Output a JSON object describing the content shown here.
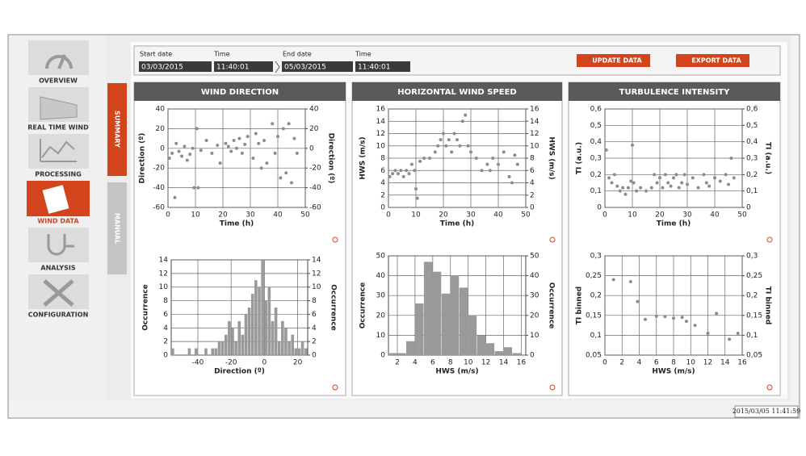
{
  "sidebar": {
    "items": [
      "OVERVIEW",
      "REAL TIME WIND",
      "PROCESSING",
      "WIND DATA",
      "ANALYSIS",
      "CONFIGURATION"
    ]
  },
  "tabs": [
    "SUMMARY",
    "MANUAL"
  ],
  "controls": {
    "start_date_label": "Start date",
    "start_date": "03/03/2015",
    "time_label": "Time",
    "start_time": "11:40:01",
    "end_date_label": "End date",
    "end_date": "05/03/2015",
    "end_time_label": "Time",
    "end_time": "11:40:01",
    "update_button": "UPDATE DATA",
    "export_button": "EXPORT DATA"
  },
  "panels": [
    "WIND DIRECTION",
    "HORIZONTAL WIND SPEED",
    "TURBULENCE INTENSITY"
  ],
  "status": "2015/03/05 11:41:59",
  "chart_data": [
    {
      "type": "scatter",
      "xlabel": "Time (h)",
      "ylabel": "Direction (º)",
      "y2label": "Direction (º)",
      "color": "#8c8c8c",
      "grid": true,
      "xlim": [
        0,
        50
      ],
      "xticks": [
        0,
        10,
        20,
        30,
        40,
        50
      ],
      "ylim": [
        -60,
        40
      ],
      "yticks": [
        -60,
        -40,
        -20,
        0,
        20,
        40
      ],
      "y2lim": [
        -60,
        40
      ],
      "y2ticks": [
        -60,
        -40,
        -20,
        0,
        20,
        40
      ],
      "x": [
        0.5,
        1.5,
        2.5,
        3,
        4,
        5,
        6,
        7,
        8,
        9,
        9.5,
        10.5,
        11,
        12,
        14,
        16,
        18,
        19,
        21,
        22,
        23,
        24,
        25,
        26,
        27,
        28,
        29,
        31,
        32,
        33,
        34,
        35,
        36,
        38,
        39,
        40,
        41,
        42,
        43,
        44,
        45,
        46,
        47
      ],
      "values": [
        -10,
        -5,
        -50,
        5,
        -3,
        -8,
        2,
        -12,
        -6,
        0,
        -40,
        20,
        -40,
        -2,
        8,
        -5,
        3,
        -15,
        5,
        2,
        -3,
        8,
        0,
        10,
        -5,
        4,
        12,
        -10,
        15,
        5,
        -20,
        8,
        -15,
        25,
        -5,
        12,
        -30,
        20,
        -25,
        25,
        -35,
        10,
        -5
      ]
    },
    {
      "type": "histogram",
      "xlabel": "Direction (º)",
      "ylabel": "Occurrence",
      "y2label": "Occurrence",
      "color": "#9a9a9a",
      "grid": true,
      "xlim": [
        -56,
        26
      ],
      "xticks": [
        -40,
        -20,
        0,
        20
      ],
      "ylim": [
        0,
        14
      ],
      "yticks": [
        0,
        2,
        4,
        6,
        8,
        10,
        12,
        14
      ],
      "y2lim": [
        0,
        14
      ],
      "y2ticks": [
        0,
        2,
        4,
        6,
        8,
        10,
        12,
        14
      ],
      "bins": [
        -56,
        -54,
        -52,
        -50,
        -48,
        -46,
        -44,
        -42,
        -40,
        -38,
        -36,
        -34,
        -32,
        -30,
        -28,
        -26,
        -24,
        -22,
        -20,
        -18,
        -16,
        -14,
        -12,
        -10,
        -8,
        -6,
        -4,
        -2,
        0,
        2,
        4,
        6,
        8,
        10,
        12,
        14,
        16,
        18,
        20,
        22,
        24,
        26
      ],
      "values": [
        1,
        0,
        0,
        0,
        0,
        1,
        0,
        1,
        0,
        0,
        1,
        0,
        1,
        1,
        2,
        2,
        3,
        5,
        4,
        2,
        5,
        3,
        6,
        7,
        9,
        11,
        10,
        14,
        8,
        10,
        5,
        7,
        2,
        5,
        4,
        2,
        3,
        1,
        1,
        2,
        1
      ]
    },
    {
      "type": "scatter",
      "xlabel": "Time (h)",
      "ylabel": "HWS (m/s)",
      "y2label": "HWS (m/s)",
      "color": "#8c8c8c",
      "grid": true,
      "xlim": [
        0,
        50
      ],
      "xticks": [
        0,
        10,
        20,
        30,
        40,
        50
      ],
      "ylim": [
        0,
        16
      ],
      "yticks": [
        0,
        2,
        4,
        6,
        8,
        10,
        12,
        14,
        16
      ],
      "y2lim": [
        0,
        16
      ],
      "y2ticks": [
        0,
        2,
        4,
        6,
        8,
        10,
        12,
        14,
        16
      ],
      "x": [
        0.5,
        1.5,
        2.5,
        3.5,
        4.5,
        5.5,
        6.5,
        7.5,
        8.5,
        9.5,
        10,
        10.5,
        11.5,
        13,
        15,
        17,
        18,
        19,
        20,
        21,
        22,
        23,
        24,
        25,
        26,
        27,
        28,
        29,
        30,
        32,
        34,
        36,
        37,
        38,
        40,
        42,
        44,
        45,
        46,
        47
      ],
      "values": [
        5,
        5.5,
        6,
        5.5,
        6,
        5,
        6,
        5.5,
        7,
        6,
        3,
        1.5,
        7.5,
        8,
        8,
        9,
        10,
        11,
        12,
        10,
        11,
        9,
        12,
        11,
        10,
        14,
        15,
        10,
        9,
        8,
        6,
        7,
        6,
        8,
        7,
        9,
        5,
        4,
        8.5,
        7
      ]
    },
    {
      "type": "histogram",
      "xlabel": "HWS (m/s)",
      "ylabel": "Occurrence",
      "y2label": "Occurrence",
      "color": "#9a9a9a",
      "grid": true,
      "xlim": [
        1,
        16.5
      ],
      "xticks": [
        2,
        4,
        6,
        8,
        10,
        12,
        14,
        16
      ],
      "ylim": [
        0,
        50
      ],
      "yticks": [
        0,
        10,
        20,
        30,
        40,
        50
      ],
      "y2lim": [
        0,
        50
      ],
      "y2ticks": [
        0,
        10,
        20,
        30,
        40,
        50
      ],
      "bins": [
        1,
        2,
        3,
        4,
        5,
        6,
        7,
        8,
        9,
        10,
        11,
        12,
        13,
        14,
        15,
        16
      ],
      "values": [
        1,
        1,
        7,
        26,
        47,
        42,
        31,
        40,
        34,
        20,
        10,
        6,
        2,
        4,
        1
      ]
    },
    {
      "type": "scatter",
      "xlabel": "Time (h)",
      "ylabel": "TI (a.u.)",
      "y2label": "TI (a.u.)",
      "color": "#8c8c8c",
      "grid": true,
      "xlim": [
        0,
        50
      ],
      "xticks": [
        0,
        10,
        20,
        30,
        40,
        50
      ],
      "ylim": [
        0,
        0.6
      ],
      "yticks": [
        0,
        {
          "value": 0.1,
          "label": "0,1"
        },
        {
          "value": 0.2,
          "label": "0,2"
        },
        {
          "value": 0.3,
          "label": "0,3"
        },
        {
          "value": 0.4,
          "label": "0,4"
        },
        {
          "value": 0.5,
          "label": "0,5"
        },
        {
          "value": 0.6,
          "label": "0,6"
        }
      ],
      "y2lim": [
        0,
        0.6
      ],
      "y2ticks": [
        0,
        {
          "value": 0.1,
          "label": "0,1"
        },
        {
          "value": 0.2,
          "label": "0,2"
        },
        {
          "value": 0.3,
          "label": "0,3"
        },
        {
          "value": 0.4,
          "label": "0,4"
        },
        {
          "value": 0.5,
          "label": "0,5"
        },
        {
          "value": 0.6,
          "label": "0,6"
        }
      ],
      "x": [
        0.5,
        1.5,
        2.5,
        3.5,
        4.5,
        5.5,
        6.5,
        7.5,
        8.5,
        9.5,
        10,
        10.5,
        11.5,
        13,
        15,
        17,
        18,
        19,
        20,
        21,
        22,
        23,
        24,
        25,
        26,
        27,
        28,
        29,
        30,
        32,
        34,
        36,
        37,
        38,
        40,
        42,
        44,
        45,
        46,
        47
      ],
      "values": [
        0.35,
        0.18,
        0.15,
        0.2,
        0.13,
        0.1,
        0.12,
        0.08,
        0.12,
        0.16,
        0.38,
        0.15,
        0.1,
        0.12,
        0.1,
        0.12,
        0.2,
        0.15,
        0.18,
        0.12,
        0.2,
        0.15,
        0.13,
        0.18,
        0.2,
        0.12,
        0.15,
        0.2,
        0.14,
        0.18,
        0.12,
        0.2,
        0.15,
        0.13,
        0.18,
        0.16,
        0.2,
        0.14,
        0.3,
        0.18
      ]
    },
    {
      "type": "scatter",
      "xlabel": "HWS (m/s)",
      "ylabel": "TI binned",
      "y2label": "TI binned",
      "color": "#8c8c8c",
      "grid": true,
      "xlim": [
        0,
        16
      ],
      "xticks": [
        0,
        2,
        4,
        6,
        8,
        10,
        12,
        14,
        16
      ],
      "ylim": [
        0.05,
        0.3
      ],
      "yticks": [
        {
          "value": 0.05,
          "label": "0,05"
        },
        {
          "value": 0.1,
          "label": "0,1"
        },
        {
          "value": 0.15,
          "label": "0,15"
        },
        {
          "value": 0.2,
          "label": "0,2"
        },
        {
          "value": 0.25,
          "label": "0,25"
        },
        {
          "value": 0.3,
          "label": "0,3"
        }
      ],
      "y2lim": [
        0.05,
        0.3
      ],
      "y2ticks": [
        {
          "value": 0.05,
          "label": "0,05"
        },
        {
          "value": 0.1,
          "label": "0,1"
        },
        {
          "value": 0.15,
          "label": "0,15"
        },
        {
          "value": 0.2,
          "label": "0,2"
        },
        {
          "value": 0.25,
          "label": "0,25"
        },
        {
          "value": 0.3,
          "label": "0,3"
        }
      ],
      "x": [
        1,
        3,
        3.8,
        4.7,
        6,
        7,
        8,
        9,
        9.5,
        10.5,
        12,
        13,
        14.5,
        15.5
      ],
      "values": [
        0.24,
        0.235,
        0.185,
        0.14,
        0.148,
        0.147,
        0.143,
        0.145,
        0.135,
        0.125,
        0.105,
        0.155,
        0.09,
        0.105
      ]
    }
  ]
}
